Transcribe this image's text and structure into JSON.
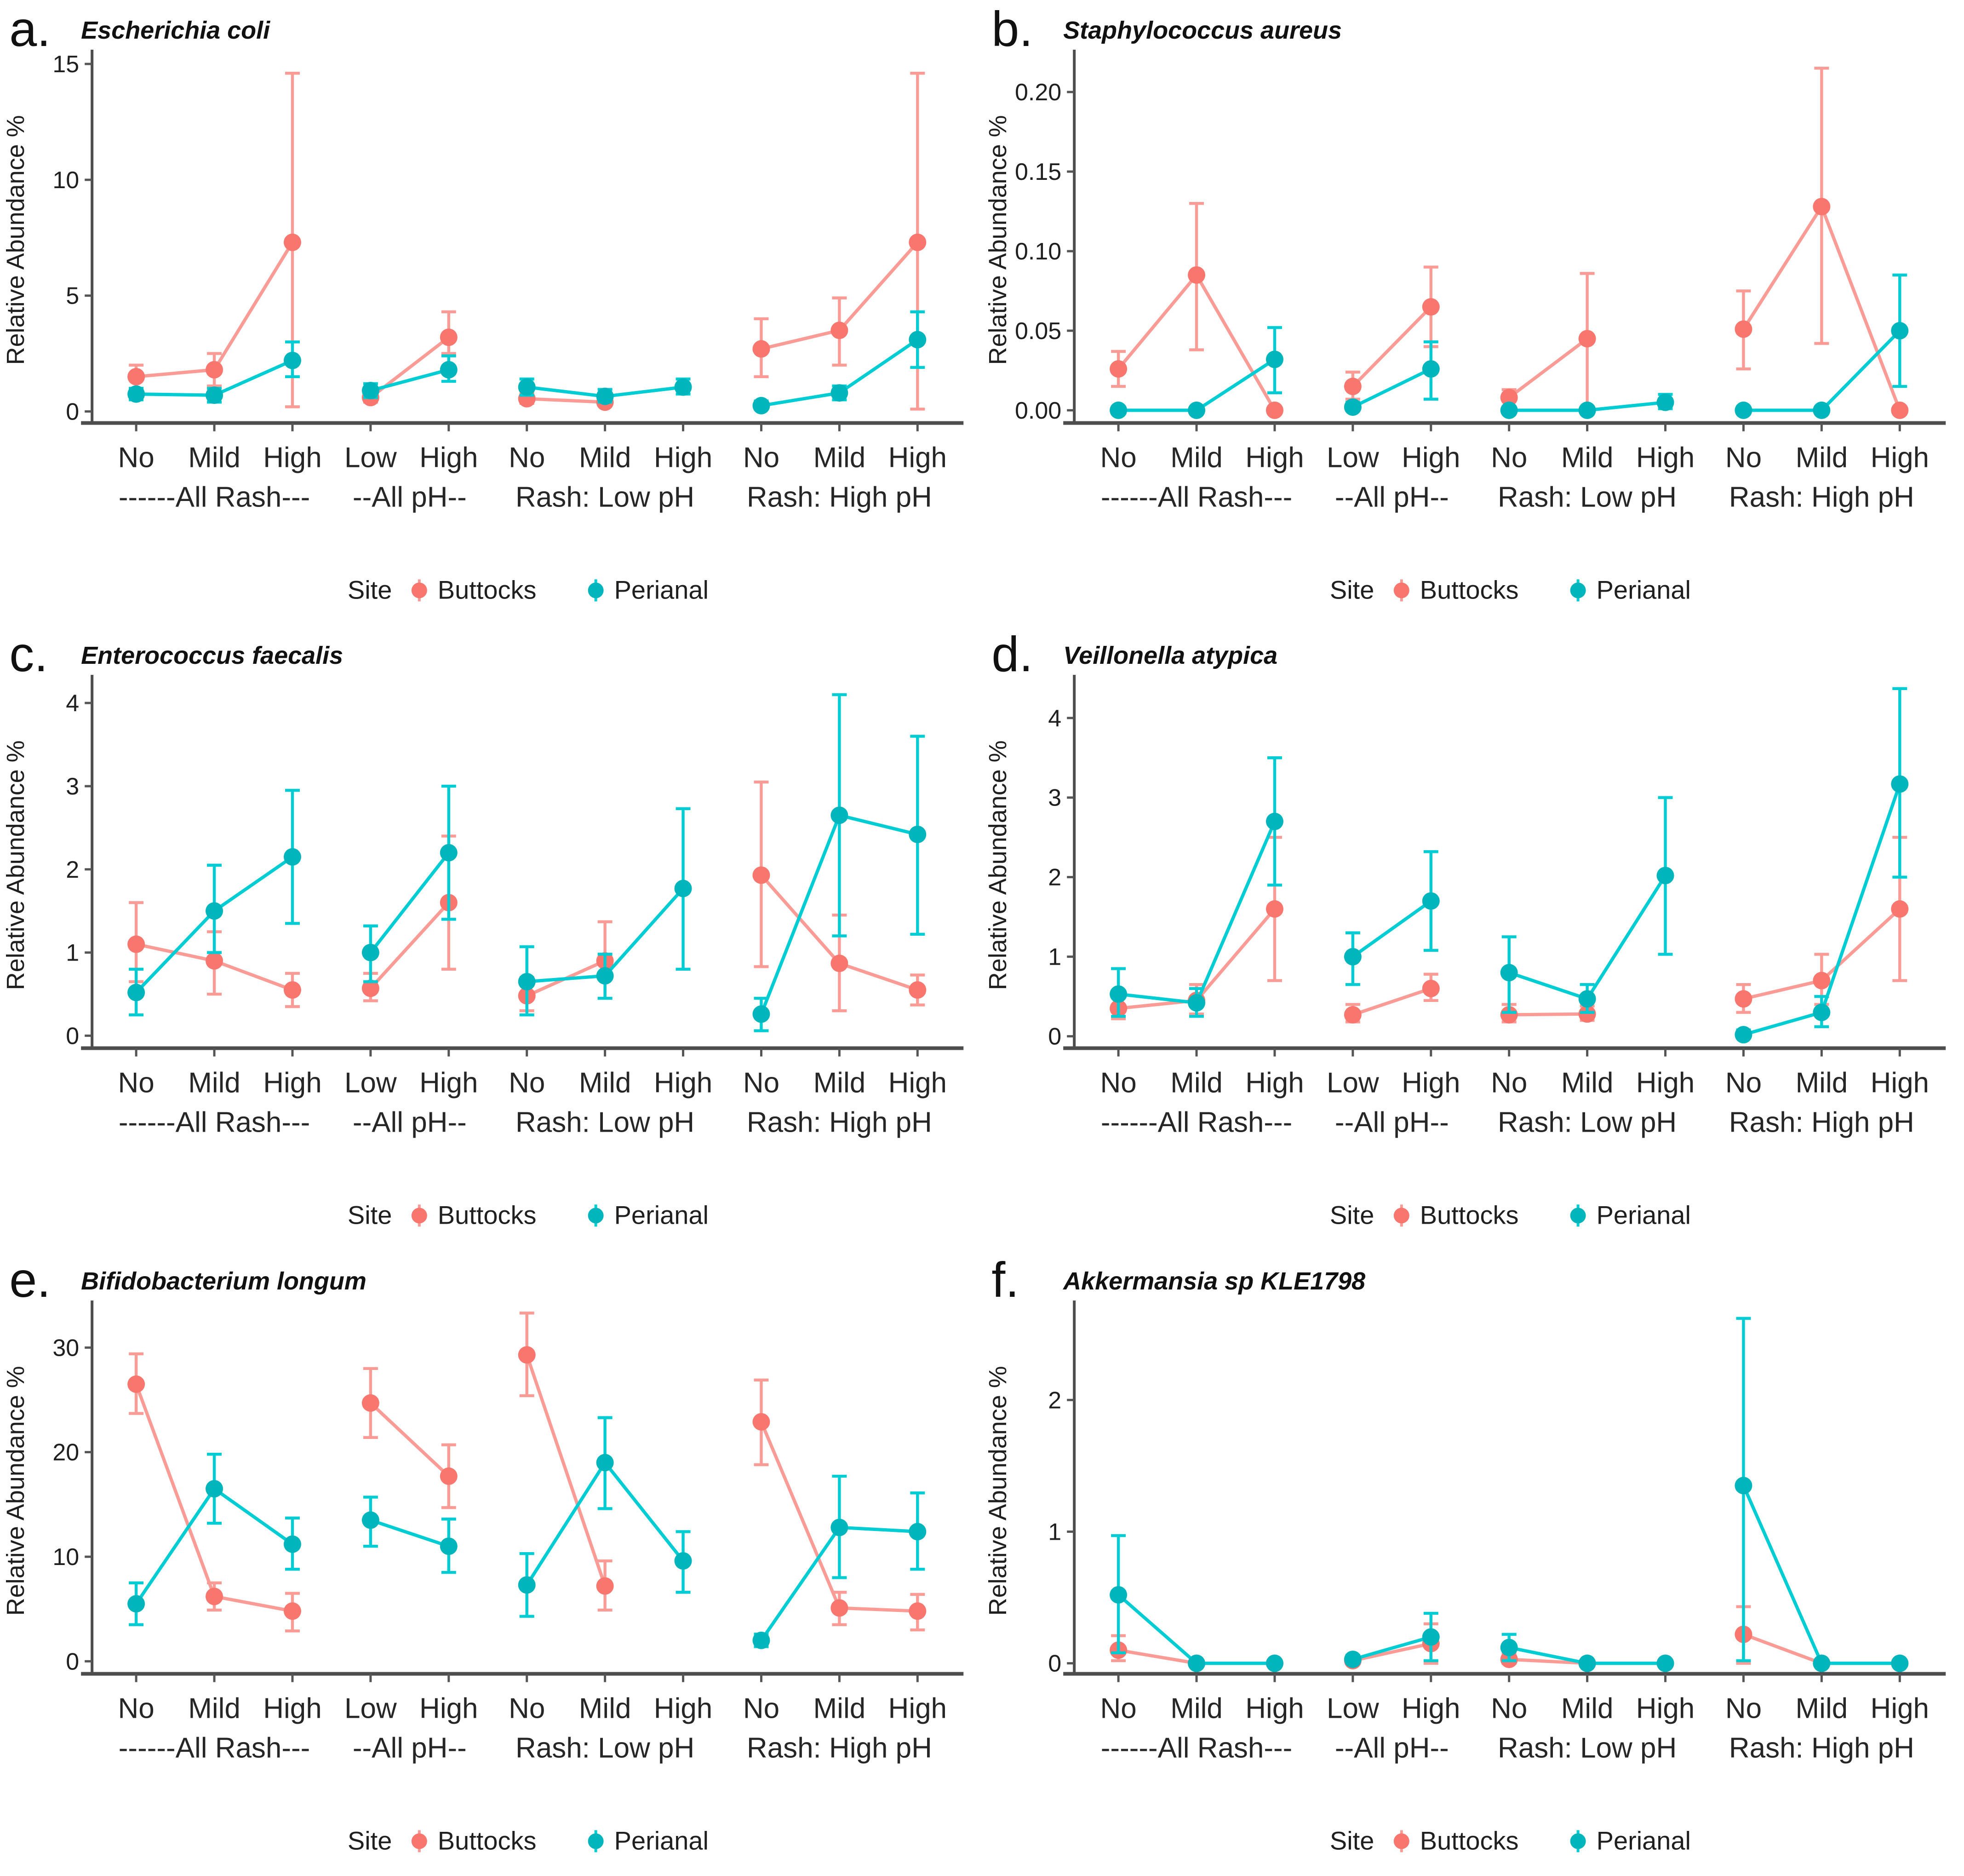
{
  "figure": {
    "background": "#ffffff",
    "axis_color": "#4d4d4d",
    "tick_color": "#555555",
    "text_color": "#1f1f1f",
    "title_color": "#111111"
  },
  "legend": {
    "title": "Site",
    "items": [
      "Buttocks",
      "Perianal"
    ]
  },
  "x_axis": {
    "groups": [
      {
        "label": "------All Rash---",
        "cats": [
          "No",
          "Mild",
          "High"
        ]
      },
      {
        "label": "--All pH--",
        "cats": [
          "Low",
          "High"
        ]
      },
      {
        "label": "Rash: Low pH",
        "cats": [
          "No",
          "Mild",
          "High"
        ]
      },
      {
        "label": "Rash: High pH",
        "cats": [
          "No",
          "Mild",
          "High"
        ]
      }
    ]
  },
  "chart_data": [
    {
      "id": "a",
      "panel_label": "a.",
      "title": "Escherichia coli",
      "type": "pointrange",
      "ylabel": "Relative Abundance %",
      "ylim": [
        -0.5,
        15.3
      ],
      "yticks": [
        0,
        5,
        10,
        15
      ],
      "ytick_labels": [
        "0",
        "5",
        "10",
        "15"
      ],
      "series": [
        {
          "name": "Buttocks",
          "point_color": "#F8766D",
          "line_color": "#FA9C95",
          "groups": [
            [
              [
                1.5,
                1.0,
                2.0
              ],
              [
                1.8,
                1.1,
                2.5
              ],
              [
                7.3,
                0.2,
                14.6
              ]
            ],
            [
              [
                0.6,
                0.4,
                0.9
              ],
              [
                3.2,
                2.5,
                4.3
              ]
            ],
            [
              [
                0.55,
                0.35,
                0.8
              ],
              [
                0.4,
                0.25,
                0.6
              ],
              null
            ],
            [
              [
                2.7,
                1.5,
                4.0
              ],
              [
                3.5,
                2.0,
                4.9
              ],
              [
                7.3,
                0.1,
                14.6
              ]
            ]
          ]
        },
        {
          "name": "Perianal",
          "point_color": "#00B5BC",
          "line_color": "#00CDD3",
          "groups": [
            [
              [
                0.75,
                0.5,
                1.0
              ],
              [
                0.7,
                0.4,
                1.0
              ],
              [
                2.2,
                1.5,
                3.0
              ]
            ],
            [
              [
                0.9,
                0.6,
                1.2
              ],
              [
                1.8,
                1.3,
                2.4
              ]
            ],
            [
              [
                1.05,
                0.7,
                1.4
              ],
              [
                0.65,
                0.4,
                0.95
              ],
              [
                1.05,
                0.75,
                1.4
              ]
            ],
            [
              [
                0.25,
                0.1,
                0.45
              ],
              [
                0.8,
                0.5,
                1.1
              ],
              [
                3.1,
                1.9,
                4.3
              ]
            ]
          ]
        }
      ]
    },
    {
      "id": "b",
      "panel_label": "b.",
      "title": "Staphylococcus aureus",
      "type": "pointrange",
      "ylabel": "Relative Abundance %",
      "ylim": [
        -0.008,
        0.222
      ],
      "yticks": [
        0,
        0.05,
        0.1,
        0.15,
        0.2
      ],
      "ytick_labels": [
        "0.00",
        "0.05",
        "0.10",
        "0.15",
        "0.20"
      ],
      "series": [
        {
          "name": "Buttocks",
          "point_color": "#F8766D",
          "line_color": "#FA9C95",
          "groups": [
            [
              [
                0.026,
                0.015,
                0.037
              ],
              [
                0.085,
                0.038,
                0.13
              ],
              [
                0,
                0,
                0
              ]
            ],
            [
              [
                0.015,
                0.007,
                0.024
              ],
              [
                0.065,
                0.04,
                0.09
              ]
            ],
            [
              [
                0.008,
                0.002,
                0.013
              ],
              [
                0.045,
                0,
                0.086
              ],
              null
            ],
            [
              [
                0.051,
                0.026,
                0.075
              ],
              [
                0.128,
                0.042,
                0.215
              ],
              [
                0,
                0,
                0
              ]
            ]
          ]
        },
        {
          "name": "Perianal",
          "point_color": "#00B5BC",
          "line_color": "#00CDD3",
          "groups": [
            [
              [
                0,
                0,
                0
              ],
              [
                0,
                0,
                0
              ],
              [
                0.032,
                0.011,
                0.052
              ]
            ],
            [
              [
                0.002,
                0,
                0.005
              ],
              [
                0.026,
                0.007,
                0.043
              ]
            ],
            [
              [
                0,
                0,
                0
              ],
              [
                0,
                0,
                0
              ],
              [
                0.005,
                0.001,
                0.01
              ]
            ],
            [
              [
                0,
                0,
                0
              ],
              [
                0,
                0,
                0
              ],
              [
                0.05,
                0.015,
                0.085
              ]
            ]
          ]
        }
      ]
    },
    {
      "id": "c",
      "panel_label": "c.",
      "title": "Enterococcus faecalis",
      "type": "pointrange",
      "ylabel": "Relative Abundance %",
      "ylim": [
        -0.15,
        4.25
      ],
      "yticks": [
        0,
        1,
        2,
        3,
        4
      ],
      "ytick_labels": [
        "0",
        "1",
        "2",
        "3",
        "4"
      ],
      "series": [
        {
          "name": "Buttocks",
          "point_color": "#F8766D",
          "line_color": "#FA9C95",
          "groups": [
            [
              [
                1.1,
                0.65,
                1.6
              ],
              [
                0.9,
                0.5,
                1.25
              ],
              [
                0.55,
                0.35,
                0.75
              ]
            ],
            [
              [
                0.57,
                0.42,
                0.75
              ],
              [
                1.6,
                0.8,
                2.4
              ]
            ],
            [
              [
                0.48,
                0.3,
                0.7
              ],
              [
                0.9,
                0.45,
                1.37
              ],
              null
            ],
            [
              [
                1.93,
                0.83,
                3.05
              ],
              [
                0.87,
                0.3,
                1.45
              ],
              [
                0.55,
                0.37,
                0.73
              ]
            ]
          ]
        },
        {
          "name": "Perianal",
          "point_color": "#00B5BC",
          "line_color": "#00CDD3",
          "groups": [
            [
              [
                0.52,
                0.25,
                0.8
              ],
              [
                1.5,
                1.0,
                2.05
              ],
              [
                2.15,
                1.35,
                2.95
              ]
            ],
            [
              [
                1.0,
                0.65,
                1.32
              ],
              [
                2.2,
                1.4,
                3.0
              ]
            ],
            [
              [
                0.65,
                0.25,
                1.07
              ],
              [
                0.72,
                0.45,
                0.98
              ],
              [
                1.77,
                0.8,
                2.73
              ]
            ],
            [
              [
                0.26,
                0.06,
                0.45
              ],
              [
                2.65,
                1.2,
                4.1
              ],
              [
                2.42,
                1.22,
                3.6
              ]
            ]
          ]
        }
      ]
    },
    {
      "id": "d",
      "panel_label": "d.",
      "title": "Veillonella atypica",
      "type": "pointrange",
      "ylabel": "Relative Abundance %",
      "ylim": [
        -0.15,
        4.45
      ],
      "yticks": [
        0,
        1,
        2,
        3,
        4
      ],
      "ytick_labels": [
        "0",
        "1",
        "2",
        "3",
        "4"
      ],
      "series": [
        {
          "name": "Buttocks",
          "point_color": "#F8766D",
          "line_color": "#FA9C95",
          "groups": [
            [
              [
                0.35,
                0.22,
                0.5
              ],
              [
                0.45,
                0.28,
                0.65
              ],
              [
                1.6,
                0.7,
                2.5
              ]
            ],
            [
              [
                0.27,
                0.18,
                0.4
              ],
              [
                0.6,
                0.45,
                0.78
              ]
            ],
            [
              [
                0.27,
                0.18,
                0.4
              ],
              [
                0.28,
                0.2,
                0.38
              ],
              null
            ],
            [
              [
                0.47,
                0.3,
                0.65
              ],
              [
                0.7,
                0.4,
                1.03
              ],
              [
                1.6,
                0.7,
                2.5
              ]
            ]
          ]
        },
        {
          "name": "Perianal",
          "point_color": "#00B5BC",
          "line_color": "#00CDD3",
          "groups": [
            [
              [
                0.53,
                0.25,
                0.85
              ],
              [
                0.42,
                0.25,
                0.6
              ],
              [
                2.7,
                1.9,
                3.5
              ]
            ],
            [
              [
                1.0,
                0.65,
                1.3
              ],
              [
                1.7,
                1.08,
                2.32
              ]
            ],
            [
              [
                0.8,
                0.3,
                1.25
              ],
              [
                0.47,
                0.3,
                0.65
              ],
              [
                2.02,
                1.03,
                3.0
              ]
            ],
            [
              [
                0.02,
                0,
                0.08
              ],
              [
                0.3,
                0.12,
                0.5
              ],
              [
                3.17,
                2.0,
                4.37
              ]
            ]
          ]
        }
      ]
    },
    {
      "id": "e",
      "panel_label": "e.",
      "title": "Bifidobacterium longum",
      "type": "pointrange",
      "ylabel": "Relative Abundance %",
      "ylim": [
        -1.2,
        33.8
      ],
      "yticks": [
        0,
        10,
        20,
        30
      ],
      "ytick_labels": [
        "0",
        "10",
        "20",
        "30"
      ],
      "series": [
        {
          "name": "Buttocks",
          "point_color": "#F8766D",
          "line_color": "#FA9C95",
          "groups": [
            [
              [
                26.5,
                23.7,
                29.4
              ],
              [
                6.2,
                4.9,
                7.5
              ],
              [
                4.8,
                2.9,
                6.5
              ]
            ],
            [
              [
                24.7,
                21.4,
                28.0
              ],
              [
                17.7,
                14.7,
                20.7
              ]
            ],
            [
              [
                29.3,
                25.4,
                33.3
              ],
              [
                7.2,
                4.9,
                9.6
              ],
              null
            ],
            [
              [
                22.9,
                18.8,
                26.9
              ],
              [
                5.1,
                3.5,
                6.6
              ],
              [
                4.8,
                3.0,
                6.4
              ]
            ]
          ]
        },
        {
          "name": "Perianal",
          "point_color": "#00B5BC",
          "line_color": "#00CDD3",
          "groups": [
            [
              [
                5.5,
                3.5,
                7.5
              ],
              [
                16.5,
                13.2,
                19.8
              ],
              [
                11.2,
                8.8,
                13.7
              ]
            ],
            [
              [
                13.5,
                11.0,
                15.7
              ],
              [
                11.0,
                8.5,
                13.6
              ]
            ],
            [
              [
                7.3,
                4.3,
                10.3
              ],
              [
                19.0,
                14.6,
                23.3
              ],
              [
                9.6,
                6.6,
                12.4
              ]
            ],
            [
              [
                2.0,
                1.4,
                2.6
              ],
              [
                12.8,
                8.0,
                17.7
              ],
              [
                12.4,
                8.8,
                16.1
              ]
            ]
          ]
        }
      ]
    },
    {
      "id": "f",
      "panel_label": "f.",
      "title": "Akkermansia sp KLE1798",
      "type": "pointrange",
      "ylabel": "Relative Abundance %",
      "ylim": [
        -0.08,
        2.7
      ],
      "yticks": [
        0,
        1,
        2
      ],
      "ytick_labels": [
        "0",
        "1",
        "2"
      ],
      "series": [
        {
          "name": "Buttocks",
          "point_color": "#F8766D",
          "line_color": "#FA9C95",
          "groups": [
            [
              [
                0.1,
                0.02,
                0.21
              ],
              [
                0,
                0,
                0
              ],
              [
                0,
                0,
                0
              ]
            ],
            [
              [
                0.02,
                0,
                0.05
              ],
              [
                0.15,
                0,
                0.3
              ]
            ],
            [
              [
                0.03,
                0,
                0.08
              ],
              [
                0,
                0,
                0
              ],
              [
                0,
                0,
                0
              ]
            ],
            [
              [
                0.22,
                0,
                0.43
              ],
              [
                0,
                0,
                0
              ],
              [
                0,
                0,
                0
              ]
            ]
          ]
        },
        {
          "name": "Perianal",
          "point_color": "#00B5BC",
          "line_color": "#00CDD3",
          "groups": [
            [
              [
                0.52,
                0.08,
                0.97
              ],
              [
                0,
                0,
                0
              ],
              [
                0,
                0,
                0
              ]
            ],
            [
              [
                0.03,
                0,
                0.06
              ],
              [
                0.2,
                0.02,
                0.38
              ]
            ],
            [
              [
                0.12,
                0.02,
                0.22
              ],
              [
                0,
                0,
                0
              ],
              [
                0,
                0,
                0
              ]
            ],
            [
              [
                1.35,
                0.02,
                2.62
              ],
              [
                0,
                0,
                0
              ],
              [
                0,
                0,
                0
              ]
            ]
          ]
        }
      ]
    }
  ]
}
